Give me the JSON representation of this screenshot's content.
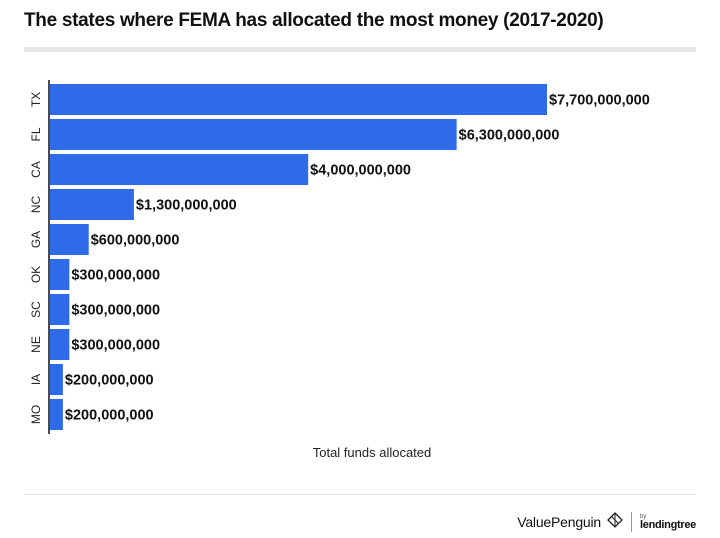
{
  "header": {
    "title": "The states where FEMA has allocated the most money (2017-2020)"
  },
  "chart_data": {
    "type": "bar",
    "orientation": "horizontal",
    "title": "The states where FEMA has allocated the most money (2017-2020)",
    "xlabel": "Total funds allocated",
    "ylabel": "",
    "categories": [
      "TX",
      "FL",
      "CA",
      "NC",
      "GA",
      "OK",
      "SC",
      "NE",
      "IA",
      "MO"
    ],
    "values": [
      7700000000,
      6300000000,
      4000000000,
      1300000000,
      600000000,
      300000000,
      300000000,
      300000000,
      200000000,
      200000000
    ],
    "value_labels": [
      "$7,700,000,000",
      "$6,300,000,000",
      "$4,000,000,000",
      "$1,300,000,000",
      "$600,000,000",
      "$300,000,000",
      "$300,000,000",
      "$300,000,000",
      "$200,000,000",
      "$200,000,000"
    ],
    "xlim": [
      0,
      7700000000
    ],
    "grid": false,
    "bar_color": "#2f6be8",
    "axis_color": "#111111"
  },
  "footer": {
    "brand": "ValuePenguin",
    "brand_icon": "valuepenguin-logo-icon",
    "partner_by": "by",
    "partner": "lendingtree"
  }
}
